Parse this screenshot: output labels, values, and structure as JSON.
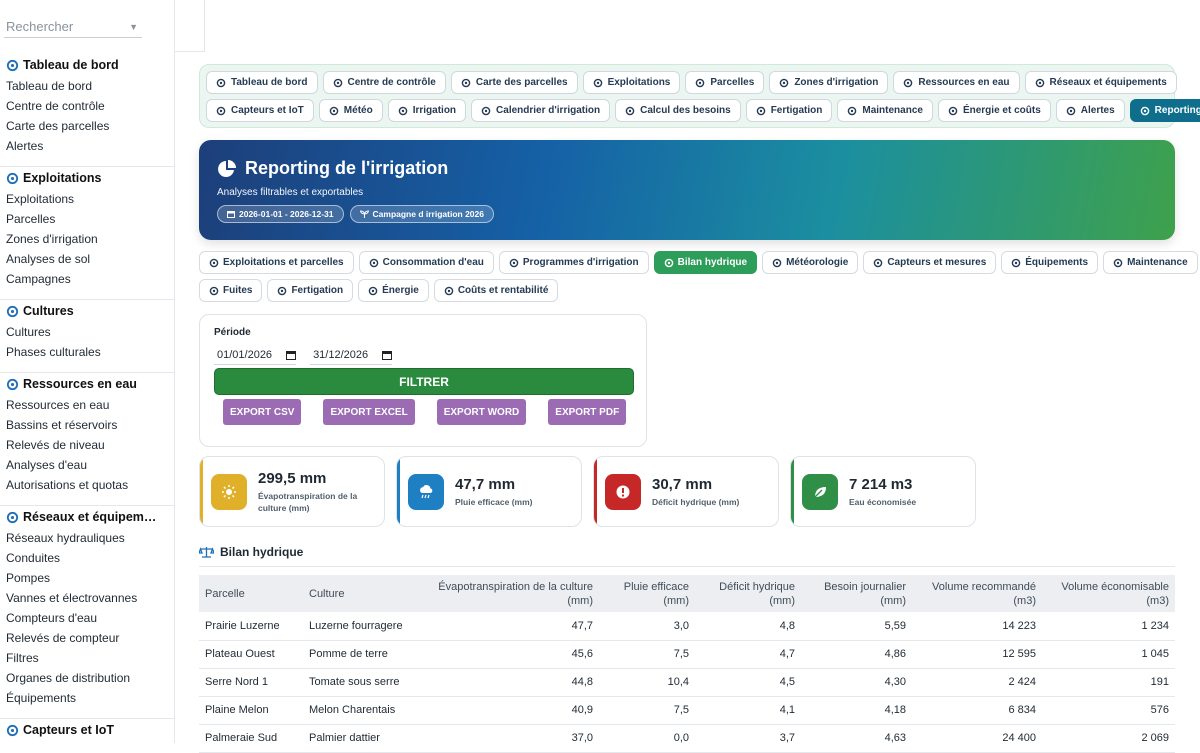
{
  "search": {
    "placeholder": "Rechercher"
  },
  "sidebar": {
    "sections": [
      {
        "title": "Tableau de bord",
        "icon": "gauge-icon",
        "items": [
          "Tableau de bord",
          "Centre de contrôle",
          "Carte des parcelles",
          "Alertes"
        ]
      },
      {
        "title": "Exploitations",
        "icon": "tractor-icon",
        "items": [
          "Exploitations",
          "Parcelles",
          "Zones d'irrigation",
          "Analyses de sol",
          "Campagnes"
        ]
      },
      {
        "title": "Cultures",
        "icon": "seedling-icon",
        "items": [
          "Cultures",
          "Phases culturales"
        ]
      },
      {
        "title": "Ressources en eau",
        "icon": "water-icon",
        "items": [
          "Ressources en eau",
          "Bassins et réservoirs",
          "Relevés de niveau",
          "Analyses d'eau",
          "Autorisations et quotas"
        ]
      },
      {
        "title": "Réseaux et équipem…",
        "icon": "network-icon",
        "items": [
          "Réseaux hydrauliques",
          "Conduites",
          "Pompes",
          "Vannes et électrovannes",
          "Compteurs d'eau",
          "Relevés de compteur",
          "Filtres",
          "Organes de distribution",
          "Équipements"
        ]
      },
      {
        "title": "Capteurs et IoT",
        "icon": "antenna-icon",
        "items": []
      }
    ]
  },
  "nav": {
    "row1": [
      "Tableau de bord",
      "Centre de contrôle",
      "Carte des parcelles",
      "Exploitations",
      "Parcelles",
      "Zones d'irrigation",
      "Ressources en eau",
      "Réseaux et équipements"
    ],
    "row2": [
      "Capteurs et IoT",
      "Météo",
      "Irrigation",
      "Calendrier d'irrigation",
      "Calcul des besoins",
      "Fertigation",
      "Maintenance",
      "Énergie et coûts",
      "Alertes",
      "Reporting"
    ]
  },
  "banner": {
    "title": "Reporting de l'irrigation",
    "subtitle": "Analyses filtrables et exportables",
    "period_chip": "2026-01-01 - 2026-12-31",
    "campaign_chip": "Campagne d irrigation 2026"
  },
  "subtabs": {
    "row1": [
      "Exploitations et parcelles",
      "Consommation d'eau",
      "Programmes d'irrigation",
      "Bilan hydrique",
      "Météorologie",
      "Capteurs et mesures",
      "Équipements",
      "Maintenance"
    ],
    "row2": [
      "Fuites",
      "Fertigation",
      "Énergie",
      "Coûts et rentabilité"
    ]
  },
  "filter": {
    "label": "Période",
    "start": "01/01/2026",
    "end": "31/12/2026",
    "button": "FILTRER",
    "exports": [
      "EXPORT CSV",
      "EXPORT EXCEL",
      "EXPORT WORD",
      "EXPORT PDF"
    ]
  },
  "cards": [
    {
      "value": "299,5 mm",
      "caption": "Évapotranspiration de la culture (mm)",
      "color": "#e0b02b"
    },
    {
      "value": "47,7 mm",
      "caption": "Pluie efficace (mm)",
      "color": "#1e7fc2"
    },
    {
      "value": "30,7 mm",
      "caption": "Déficit hydrique (mm)",
      "color": "#c62828"
    },
    {
      "value": "7 214 m3",
      "caption": "Eau économisée",
      "color": "#2f8f46"
    }
  ],
  "bilan": {
    "title": "Bilan hydrique",
    "headers": [
      "Parcelle",
      "Culture",
      "Évapotranspiration de la culture (mm)",
      "Pluie efficace (mm)",
      "Déficit hydrique (mm)",
      "Besoin journalier (mm)",
      "Volume recommandé (m3)",
      "Volume économisable (m3)"
    ],
    "rows": [
      [
        "Prairie Luzerne",
        "Luzerne fourragere",
        "47,7",
        "3,0",
        "4,8",
        "5,59",
        "14 223",
        "1 234"
      ],
      [
        "Plateau Ouest",
        "Pomme de terre",
        "45,6",
        "7,5",
        "4,7",
        "4,86",
        "12 595",
        "1 045"
      ],
      [
        "Serre Nord 1",
        "Tomate sous serre",
        "44,8",
        "10,4",
        "4,5",
        "4,30",
        "2 424",
        "191"
      ],
      [
        "Plaine Melon",
        "Melon Charentais",
        "40,9",
        "7,5",
        "4,1",
        "4,18",
        "6 834",
        "576"
      ],
      [
        "Palmeraie Sud",
        "Palmier dattier",
        "37,0",
        "0,0",
        "3,7",
        "4,63",
        "24 400",
        "2 069"
      ]
    ]
  }
}
